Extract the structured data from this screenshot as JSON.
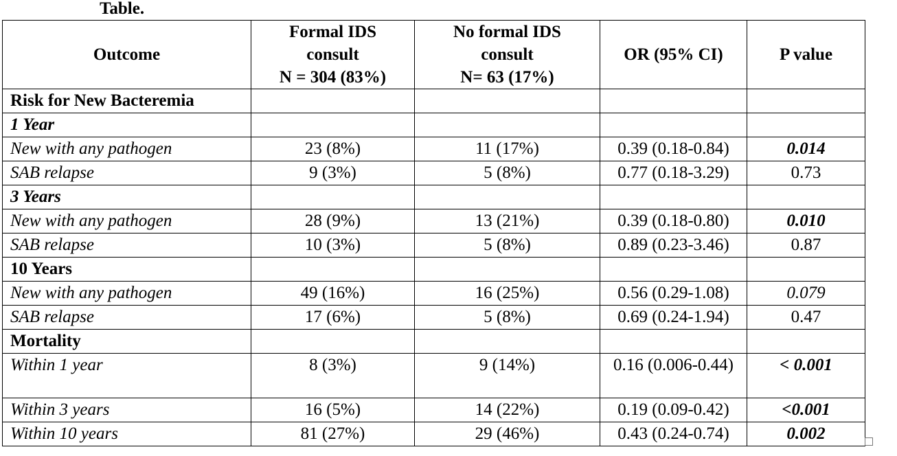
{
  "caption": "Table.",
  "headers": {
    "outcome": "Outcome",
    "formal_line1": "Formal IDS",
    "formal_line2": "consult",
    "formal_line3": "N = 304 (83%)",
    "noformal_line1": "No formal IDS",
    "noformal_line2": "consult",
    "noformal_line3": "N= 63 (17%)",
    "or": "OR (95% CI)",
    "pvalue": "P value"
  },
  "rows": [
    {
      "label": "Risk for New Bacteremia",
      "formal": "",
      "noformal": "",
      "or": "",
      "p": ""
    },
    {
      "label": "1 Year",
      "formal": "",
      "noformal": "",
      "or": "",
      "p": ""
    },
    {
      "label": "New with any pathogen",
      "formal": "23 (8%)",
      "noformal": "11 (17%)",
      "or": "0.39 (0.18-0.84)",
      "p": "0.014"
    },
    {
      "label": "SAB relapse",
      "formal": "9 (3%)",
      "noformal": "5 (8%)",
      "or": "0.77 (0.18-3.29)",
      "p": "0.73"
    },
    {
      "label": "3 Years",
      "formal": "",
      "noformal": "",
      "or": "",
      "p": ""
    },
    {
      "label": "New with any pathogen",
      "formal": "28 (9%)",
      "noformal": "13 (21%)",
      "or": "0.39 (0.18-0.80)",
      "p": "0.010"
    },
    {
      "label": "SAB relapse",
      "formal": "10 (3%)",
      "noformal": "5 (8%)",
      "or": "0.89 (0.23-3.46)",
      "p": "0.87"
    },
    {
      "label": "10 Years",
      "formal": "",
      "noformal": "",
      "or": "",
      "p": ""
    },
    {
      "label": "New with any pathogen",
      "formal": "49 (16%)",
      "noformal": "16 (25%)",
      "or": "0.56 (0.29-1.08)",
      "p": "0.079"
    },
    {
      "label": "SAB relapse",
      "formal": "17 (6%)",
      "noformal": "5 (8%)",
      "or": "0.69 (0.24-1.94)",
      "p": "0.47"
    },
    {
      "label": "Mortality",
      "formal": "",
      "noformal": "",
      "or": "",
      "p": ""
    },
    {
      "label": "Within 1 year",
      "formal": "8 (3%)",
      "noformal": "9 (14%)",
      "or": "0.16 (0.006-0.44)",
      "p": "< 0.001"
    },
    {
      "label": "Within 3 years",
      "formal": "16 (5%)",
      "noformal": "14 (22%)",
      "or": "0.19 (0.09-0.42)",
      "p": "<0.001"
    },
    {
      "label": "Within 10 years",
      "formal": "81 (27%)",
      "noformal": "29 (46%)",
      "or": "0.43 (0.24-0.74)",
      "p": "0.002"
    }
  ]
}
